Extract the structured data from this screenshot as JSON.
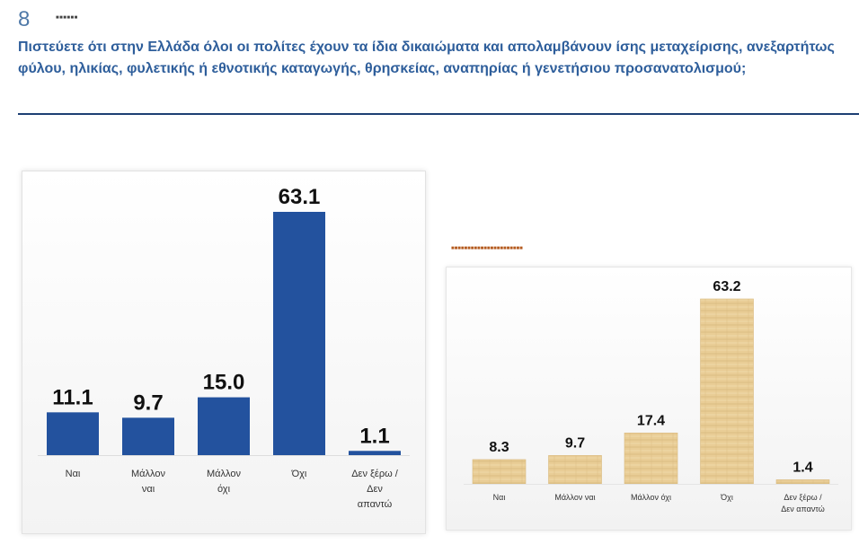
{
  "slide_number": "8",
  "question": "Πιστεύετε ότι στην Ελλάδα όλοι οι πολίτες έχουν τα ίδια δικαιώματα και απολαμβάνουν ίσης μεταχείρισης, ανεξαρτήτως φύλου, ηλικίας, φυλετικής ή εθνοτικής καταγωγής, θρησκείας, αναπηρίας ή γενετήσιου προσανατολισμού;",
  "colors": {
    "left_bar": "#23529e",
    "right_bar": "#e7c98f",
    "title": "#2e5e9b",
    "rule": "#1d3f73"
  },
  "chart_data": [
    {
      "type": "bar",
      "title": "",
      "categories": [
        [
          "Ναι"
        ],
        [
          "Μάλλον",
          "ναι"
        ],
        [
          "Μάλλον",
          "όχι"
        ],
        [
          "Όχι"
        ],
        [
          "Δεν ξέρω /",
          "Δεν",
          "απαντώ"
        ]
      ],
      "values": [
        11.1,
        9.7,
        15.0,
        63.1,
        1.1
      ],
      "value_labels": [
        "11.1",
        "9.7",
        "15.0",
        "63.1",
        "1.1"
      ],
      "ylim": [
        0,
        63.1
      ],
      "grid": false,
      "legend": "none"
    },
    {
      "type": "bar",
      "title": "",
      "categories": [
        [
          "Ναι"
        ],
        [
          "Μάλλον ναι"
        ],
        [
          "Μάλλον όχι"
        ],
        [
          "Όχι"
        ],
        [
          "Δεν ξέρω /",
          "Δεν απαντώ"
        ]
      ],
      "values": [
        8.3,
        9.7,
        17.4,
        63.2,
        1.4
      ],
      "value_labels": [
        "8.3",
        "9.7",
        "17.4",
        "63.2",
        "1.4"
      ],
      "ylim": [
        0,
        63.2
      ],
      "grid": false,
      "legend": "none"
    }
  ]
}
